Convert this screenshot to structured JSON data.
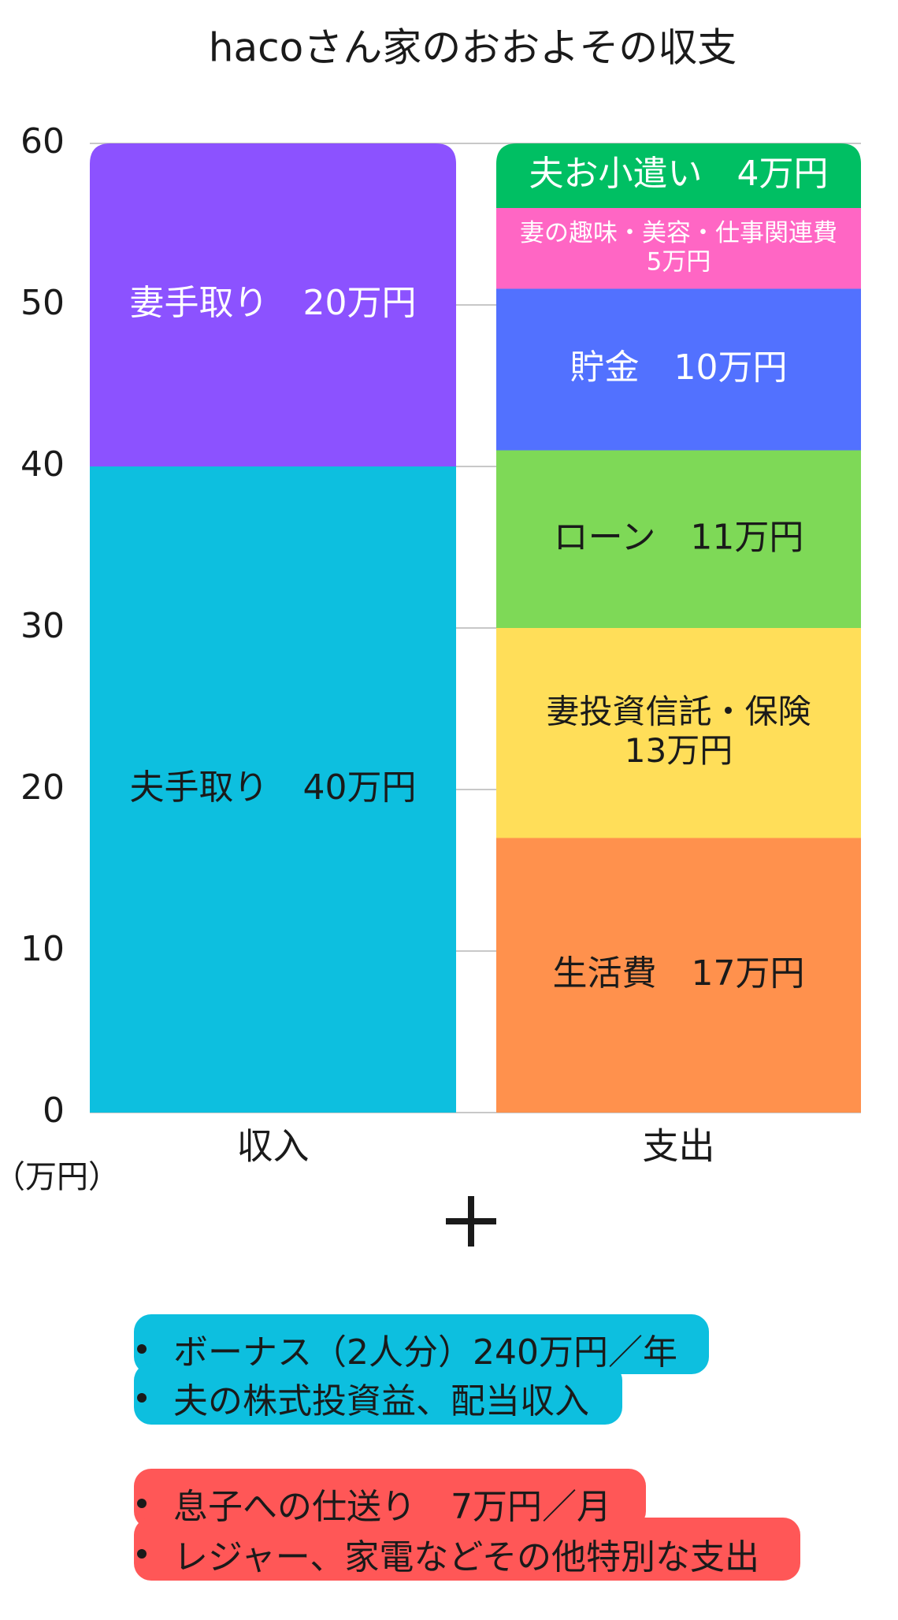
{
  "chart_data": {
    "type": "bar",
    "stacked": true,
    "title": "hacoさん家のおおよその収支",
    "unit_label": "（万円）",
    "ylim": [
      0,
      60
    ],
    "yticks": [
      "0",
      "10",
      "20",
      "30",
      "40",
      "50",
      "60"
    ],
    "grid": true,
    "categories": [
      "収入",
      "支出"
    ],
    "stacks": [
      {
        "category": "収入",
        "segments": [
          {
            "value": 40,
            "label": "夫手取り　40万円",
            "color": "#0dbfdf"
          },
          {
            "value": 20,
            "label": "妻手取り　20万円",
            "color": "#8c52ff"
          }
        ]
      },
      {
        "category": "支出",
        "segments": [
          {
            "value": 17,
            "label": "生活費　17万円",
            "color": "#ff914d"
          },
          {
            "value": 13,
            "label": "妻投資信託・保険\n13万円",
            "color": "#ffde59"
          },
          {
            "value": 11,
            "label": "ローン　11万円",
            "color": "#7ed957"
          },
          {
            "value": 10,
            "label": "貯金　10万円",
            "color": "#5271ff"
          },
          {
            "value": 5,
            "label": "妻の趣味・美容・仕事関連費\n5万円",
            "color": "#ff66c4"
          },
          {
            "value": 4,
            "label": "夫お小遣い　4万円",
            "color": "#00bf63"
          }
        ]
      }
    ]
  },
  "plus_icon": "plus-icon",
  "notes": {
    "income": {
      "color": "#0dbfdf",
      "items": [
        "ボーナス（2人分）240万円／年",
        "夫の株式投資益、配当収入"
      ]
    },
    "expense": {
      "color": "#ff5757",
      "items": [
        "息子への仕送り　7万円／月",
        "レジャー、家電などその他特別な支出"
      ]
    }
  }
}
